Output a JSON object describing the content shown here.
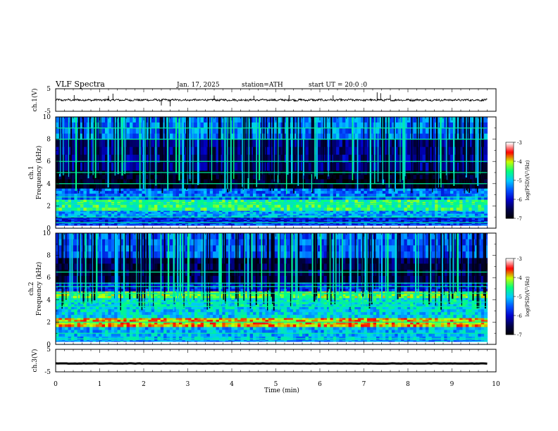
{
  "header": {
    "title": "VLF Spectra",
    "date": "Jan. 17, 2025",
    "station": "station=ATH",
    "start_ut": "start UT =  20:0 :0"
  },
  "chart_data": [
    {
      "type": "line",
      "name": "ch1-waveform",
      "ylabel": "ch.1(V)",
      "yticks": [
        "5",
        "-5"
      ],
      "ylim": [
        -5,
        5
      ],
      "xlim": [
        0,
        10
      ],
      "x_end": 9.8,
      "baseline": 0.0,
      "typical_amplitude": 0.8,
      "spikes": [
        {
          "x": 0.42,
          "y": 2.2
        },
        {
          "x": 1.2,
          "y": 1.8
        },
        {
          "x": 1.3,
          "y": 2.8
        },
        {
          "x": 2.4,
          "y": -2.4
        },
        {
          "x": 2.6,
          "y": -2.8
        },
        {
          "x": 3.6,
          "y": 2.0
        },
        {
          "x": 4.5,
          "y": 1.9
        },
        {
          "x": 5.3,
          "y": 2.2
        },
        {
          "x": 6.3,
          "y": 2.1
        },
        {
          "x": 7.3,
          "y": 3.4
        },
        {
          "x": 7.38,
          "y": 3.0
        },
        {
          "x": 7.6,
          "y": 2.3
        }
      ]
    },
    {
      "type": "heatmap",
      "name": "ch1-spectrogram",
      "ylabel": "ch.1\nFrequency (kHz)",
      "yticks": [
        "0",
        "2",
        "4",
        "6",
        "8",
        "10"
      ],
      "ylim": [
        0,
        10
      ],
      "xlim": [
        0,
        10
      ],
      "x_end": 9.8,
      "zlim": [
        -7,
        -3
      ],
      "colorbar_label": "log(PSD)(V²/Hz)",
      "colorbar_ticks": [
        "-3",
        "-4",
        "-5",
        "-6",
        "-7"
      ],
      "bands": [
        {
          "f0": 0.0,
          "f1": 0.5,
          "level": 0.35
        },
        {
          "f0": 0.5,
          "f1": 1.0,
          "level": 0.3
        },
        {
          "f0": 1.0,
          "f1": 1.6,
          "level": 0.45
        },
        {
          "f0": 1.6,
          "f1": 2.6,
          "level": 0.62
        },
        {
          "f0": 2.6,
          "f1": 3.6,
          "level": 0.4
        },
        {
          "f0": 3.6,
          "f1": 5.2,
          "level": 0.05
        },
        {
          "f0": 5.2,
          "f1": 8.0,
          "level": 0.18
        },
        {
          "f0": 8.0,
          "f1": 10.0,
          "level": 0.42
        }
      ],
      "tones_khz": [
        0.5,
        1.0,
        2.2,
        2.8,
        4.0,
        5.0,
        6.0,
        8.0,
        9.0
      ]
    },
    {
      "type": "heatmap",
      "name": "ch2-spectrogram",
      "ylabel": "ch.2\nFrequency (kHz)",
      "yticks": [
        "0",
        "2",
        "4",
        "6",
        "8",
        "10"
      ],
      "ylim": [
        0,
        10
      ],
      "xlim": [
        0,
        10
      ],
      "x_end": 9.8,
      "zlim": [
        -7,
        -3
      ],
      "colorbar_label": "log(PSD)(V²/Hz)",
      "colorbar_ticks": [
        "-3",
        "-4",
        "-5",
        "-6",
        "-7"
      ],
      "bands": [
        {
          "f0": 0.0,
          "f1": 0.4,
          "level": 0.45
        },
        {
          "f0": 0.4,
          "f1": 1.6,
          "level": 0.48
        },
        {
          "f0": 1.6,
          "f1": 2.4,
          "level": 0.78
        },
        {
          "f0": 2.4,
          "f1": 3.4,
          "level": 0.52
        },
        {
          "f0": 3.4,
          "f1": 4.2,
          "level": 0.55
        },
        {
          "f0": 4.2,
          "f1": 4.8,
          "level": 0.68
        },
        {
          "f0": 4.8,
          "f1": 5.6,
          "level": 0.3
        },
        {
          "f0": 5.6,
          "f1": 7.8,
          "level": 0.12
        },
        {
          "f0": 7.8,
          "f1": 10.0,
          "level": 0.38
        }
      ],
      "tones_khz": [
        0.5,
        1.0,
        2.0,
        3.4,
        3.8,
        4.6,
        5.2,
        5.5,
        6.5
      ]
    },
    {
      "type": "line",
      "name": "ch3-waveform",
      "ylabel": "ch.3(V)",
      "yticks": [
        "5",
        "-5"
      ],
      "ylim": [
        -5,
        5
      ],
      "xlim": [
        0,
        10
      ],
      "x_end": 9.8,
      "baseline": -1.3,
      "typical_amplitude": 0.15
    }
  ],
  "xaxis": {
    "label": "Time (min)",
    "ticks": [
      "0",
      "1",
      "2",
      "3",
      "4",
      "5",
      "6",
      "7",
      "8",
      "9",
      "10"
    ],
    "xlim": [
      0,
      10
    ]
  },
  "colors": {
    "frame": "#000000",
    "trace": "#000000",
    "colormap": [
      "#000000",
      "#00004a",
      "#0000c8",
      "#0050ff",
      "#00c8ff",
      "#00ff80",
      "#c8ff00",
      "#ff0000",
      "#ffffff"
    ]
  }
}
